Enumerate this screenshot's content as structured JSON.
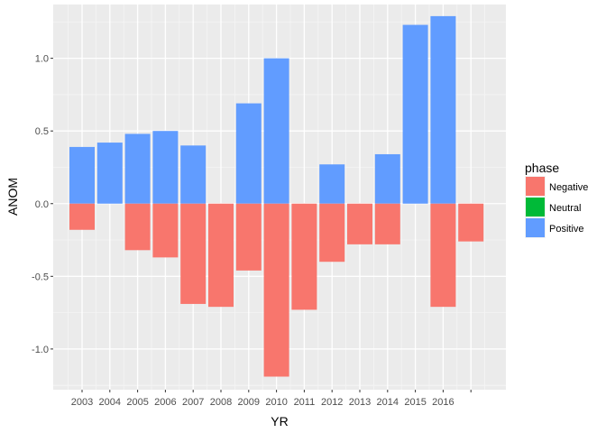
{
  "chart_data": {
    "type": "bar",
    "xlabel": "YR",
    "ylabel": "ANOM",
    "ylim": [
      -1.28,
      1.37
    ],
    "y_ticks": [
      -1.0,
      -0.5,
      0.0,
      0.5,
      1.0
    ],
    "y_tick_labels": [
      "-1.0",
      "-0.5",
      "0.0",
      "0.5",
      "1.0"
    ],
    "categories": [
      "2003",
      "2004",
      "2005",
      "2006",
      "2007",
      "2008",
      "2009",
      "2010",
      "2011",
      "2012",
      "2013",
      "2014",
      "2015",
      "2016",
      ""
    ],
    "legend": {
      "title": "phase",
      "position": "right",
      "entries": [
        {
          "name": "Negative",
          "color": "#F8766D"
        },
        {
          "name": "Neutral",
          "color": "#00BA38"
        },
        {
          "name": "Positive",
          "color": "#619CFF"
        }
      ]
    },
    "series": [
      {
        "name": "Positive",
        "color": "#619CFF",
        "values": [
          0.39,
          0.42,
          0.48,
          0.5,
          0.4,
          null,
          0.69,
          1.0,
          null,
          0.27,
          null,
          0.34,
          1.23,
          1.29,
          null
        ]
      },
      {
        "name": "Negative",
        "color": "#F8766D",
        "values": [
          -0.18,
          null,
          -0.32,
          -0.37,
          -0.69,
          -0.71,
          -0.46,
          -1.19,
          -0.73,
          -0.4,
          -0.28,
          -0.28,
          null,
          -0.71,
          -0.26
        ]
      },
      {
        "name": "Neutral",
        "color": "#00BA38",
        "values": [
          null,
          null,
          null,
          null,
          null,
          null,
          null,
          null,
          null,
          null,
          null,
          null,
          null,
          null,
          null
        ]
      }
    ],
    "grid": true,
    "background": "#EBEBEB"
  }
}
